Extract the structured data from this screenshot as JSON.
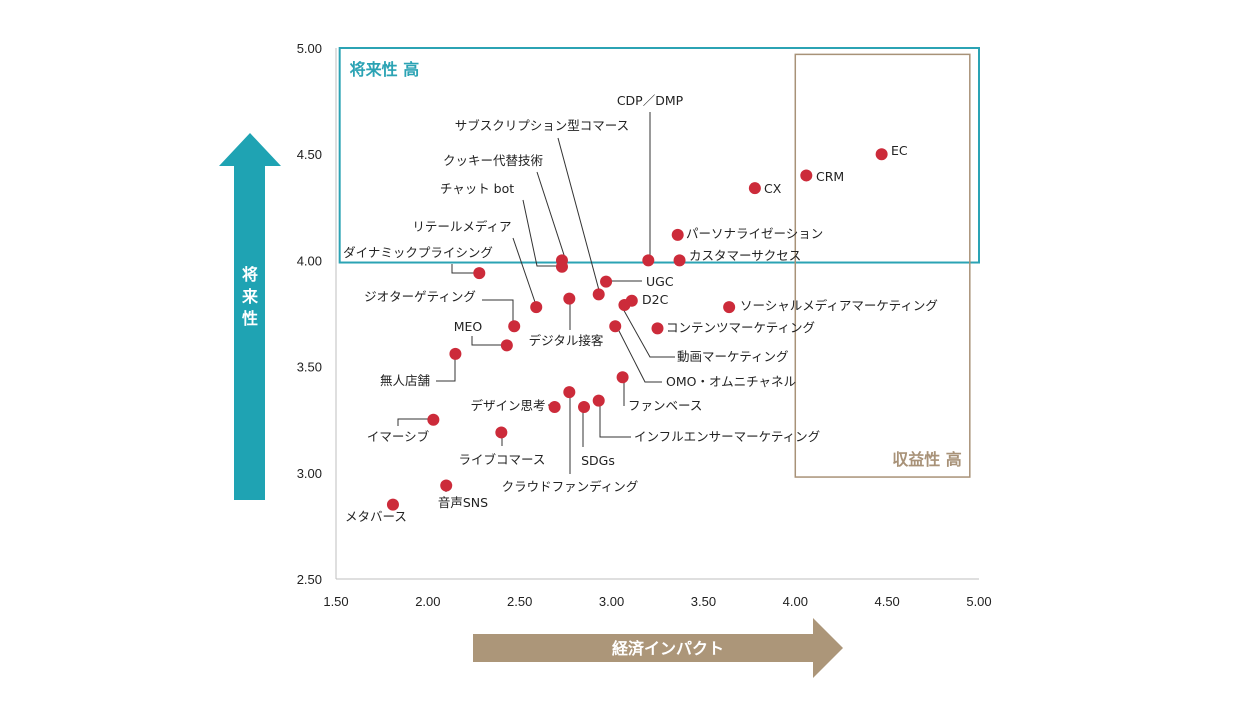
{
  "chart_data": {
    "type": "scatter",
    "title": "",
    "xlabel": "経済インパクト",
    "ylabel": "将来性",
    "xlim": [
      1.5,
      5.0
    ],
    "ylim": [
      2.5,
      5.0
    ],
    "x_ticks": [
      "1.50",
      "2.00",
      "2.50",
      "3.00",
      "3.50",
      "4.00",
      "4.50",
      "5.00"
    ],
    "y_ticks": [
      "2.50",
      "3.00",
      "3.50",
      "4.00",
      "4.50",
      "5.00"
    ],
    "grid": false,
    "regions": [
      {
        "label": "将来性 高",
        "x": [
          1.52,
          5.0
        ],
        "y": [
          3.99,
          5.0
        ],
        "color": "#2ba3b4"
      },
      {
        "label": "収益性 高",
        "x": [
          4.0,
          4.95
        ],
        "y": [
          2.98,
          4.97
        ],
        "color": "#a89278"
      }
    ],
    "points": [
      {
        "label": "EC",
        "x": 4.47,
        "y": 4.5
      },
      {
        "label": "CRM",
        "x": 4.06,
        "y": 4.4
      },
      {
        "label": "CX",
        "x": 3.78,
        "y": 4.34
      },
      {
        "label": "パーソナライゼーション",
        "x": 3.36,
        "y": 4.12
      },
      {
        "label": "カスタマーサクセス",
        "x": 3.37,
        "y": 4.0
      },
      {
        "label": "CDP／DMP",
        "x": 3.2,
        "y": 4.0
      },
      {
        "label": "サブスクリプション型コマース",
        "x": 2.93,
        "y": 3.84
      },
      {
        "label": "クッキー代替技術",
        "x": 2.73,
        "y": 4.0
      },
      {
        "label": "チャット bot",
        "x": 2.73,
        "y": 3.97
      },
      {
        "label": "リテールメディア",
        "x": 2.59,
        "y": 3.78
      },
      {
        "label": "ダイナミックプライシング",
        "x": 2.28,
        "y": 3.94
      },
      {
        "label": "ジオターゲティング",
        "x": 2.47,
        "y": 3.69
      },
      {
        "label": "MEO",
        "x": 2.43,
        "y": 3.6
      },
      {
        "label": "UGC",
        "x": 2.97,
        "y": 3.9
      },
      {
        "label": "D2C",
        "x": 3.11,
        "y": 3.81
      },
      {
        "label": "デジタル接客",
        "x": 2.77,
        "y": 3.82
      },
      {
        "label": "ソーシャルメディアマーケティング",
        "x": 3.64,
        "y": 3.78
      },
      {
        "label": "コンテンツマーケティング",
        "x": 3.25,
        "y": 3.68
      },
      {
        "label": "動画マーケティング",
        "x": 3.07,
        "y": 3.79
      },
      {
        "label": "OMO・オムニチャネル",
        "x": 3.02,
        "y": 3.69
      },
      {
        "label": "無人店舗",
        "x": 2.15,
        "y": 3.56
      },
      {
        "label": "ファンベース",
        "x": 3.06,
        "y": 3.45
      },
      {
        "label": "デザイン思考",
        "x": 2.69,
        "y": 3.31
      },
      {
        "label": "インフルエンサーマーケティング",
        "x": 2.93,
        "y": 3.34
      },
      {
        "label": "SDGs",
        "x": 2.85,
        "y": 3.31
      },
      {
        "label": "クラウドファンディング",
        "x": 2.77,
        "y": 3.38
      },
      {
        "label": "イマーシブ",
        "x": 2.03,
        "y": 3.25
      },
      {
        "label": "ライブコマース",
        "x": 2.4,
        "y": 3.19
      },
      {
        "label": "音声SNS",
        "x": 2.1,
        "y": 2.94
      },
      {
        "label": "メタバース",
        "x": 1.81,
        "y": 2.85
      }
    ]
  }
}
